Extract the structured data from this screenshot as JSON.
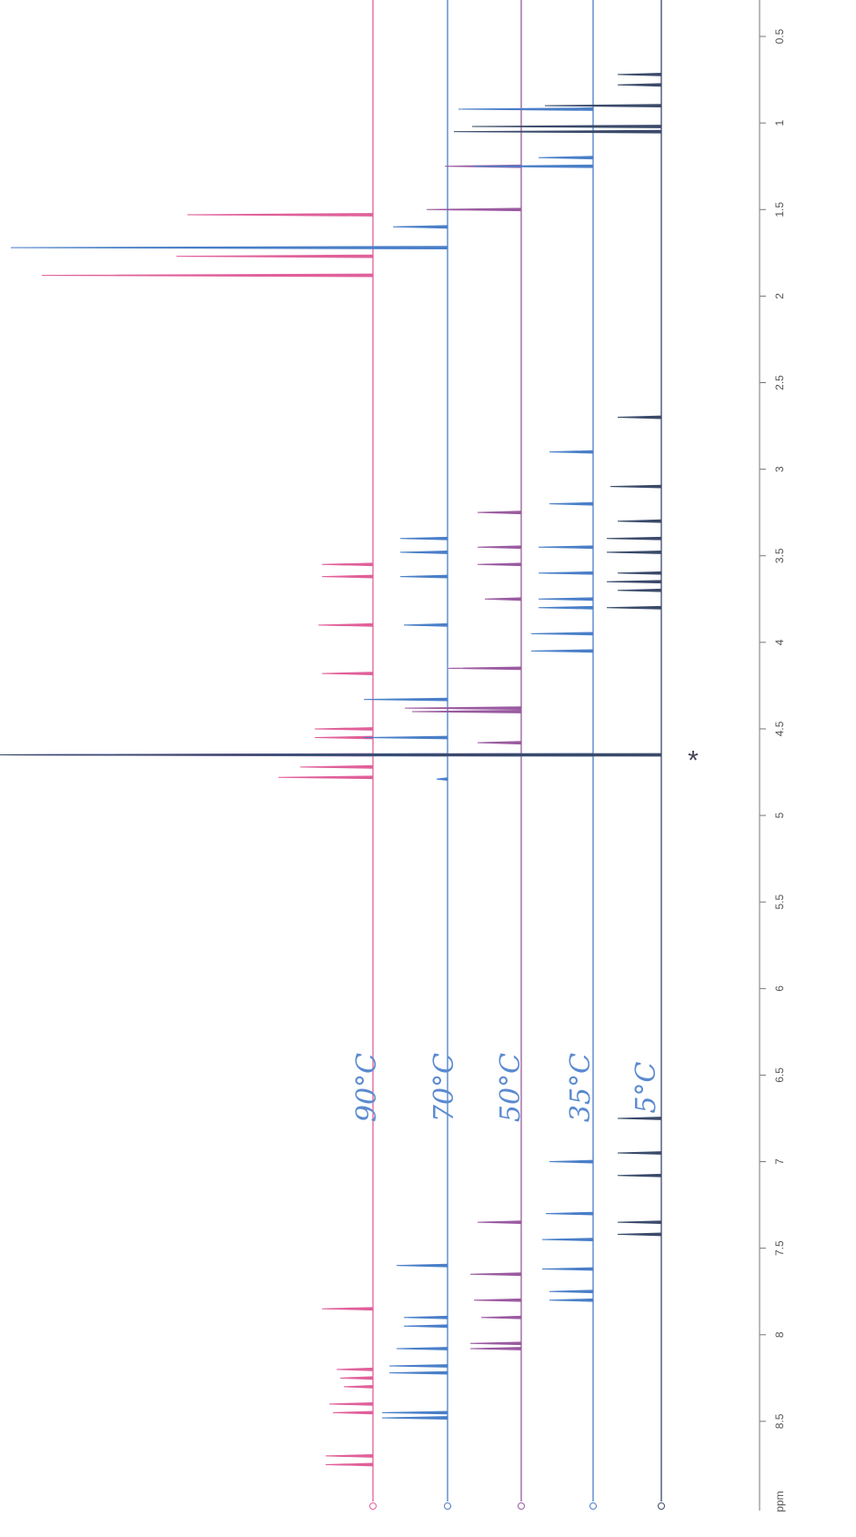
{
  "chart_data": {
    "type": "line",
    "xlabel": "ppm",
    "annotation": "*",
    "xlim": [
      0.3,
      9.0
    ],
    "xticks": [
      0.5,
      1,
      1.5,
      2,
      2.5,
      3,
      3.5,
      4,
      4.5,
      5,
      5.5,
      6,
      6.5,
      7,
      7.5,
      8,
      8.5
    ],
    "series": [
      {
        "name": "90°C",
        "color": "#e0609a",
        "x": [
          1.53,
          1.77,
          1.88,
          3.55,
          3.62,
          3.9,
          4.18,
          4.5,
          4.55,
          4.65,
          4.72,
          4.78,
          7.85,
          8.2,
          8.25,
          8.3,
          8.4,
          8.45,
          8.7,
          8.75
        ],
        "values": [
          51,
          54,
          91,
          14,
          14,
          15,
          14,
          16,
          16,
          103,
          20,
          26,
          14,
          10,
          9,
          8,
          12,
          11,
          13,
          13
        ]
      },
      {
        "name": "70°C",
        "color": "#4a7fc8",
        "x": [
          1.6,
          1.72,
          3.4,
          3.48,
          3.62,
          3.9,
          4.33,
          4.55,
          4.65,
          4.79,
          7.6,
          7.9,
          7.95,
          8.08,
          8.18,
          8.22,
          8.45,
          8.48
        ],
        "values": [
          15,
          120,
          13,
          13,
          13,
          12,
          23,
          23,
          123,
          3,
          14,
          12,
          12,
          14,
          16,
          16,
          18,
          18
        ]
      },
      {
        "name": "50°C",
        "color": "#9a5aa0",
        "x": [
          1.25,
          1.5,
          3.25,
          3.45,
          3.55,
          3.75,
          4.15,
          4.38,
          4.4,
          4.58,
          4.65,
          7.35,
          7.65,
          7.8,
          7.9,
          8.05,
          8.08
        ],
        "values": [
          21,
          26,
          12,
          12,
          12,
          10,
          20,
          32,
          30,
          12,
          143,
          12,
          14,
          13,
          11,
          14,
          14
        ]
      },
      {
        "name": "35°C",
        "color": "#4a7fc8",
        "x": [
          0.92,
          1.2,
          1.25,
          2.9,
          3.2,
          3.45,
          3.6,
          3.75,
          3.8,
          3.95,
          4.05,
          4.65,
          7.0,
          7.3,
          7.45,
          7.62,
          7.75,
          7.8
        ],
        "values": [
          37,
          15,
          33,
          12,
          12,
          15,
          15,
          15,
          15,
          17,
          17,
          163,
          12,
          13,
          14,
          14,
          12,
          12
        ]
      },
      {
        "name": "5°C",
        "color": "#3a4a6a",
        "x": [
          0.72,
          0.78,
          0.9,
          1.02,
          1.05,
          2.7,
          3.1,
          3.3,
          3.4,
          3.48,
          3.6,
          3.65,
          3.7,
          3.8,
          4.65,
          6.75,
          6.95,
          7.08,
          7.35,
          7.42
        ],
        "values": [
          12,
          12,
          32,
          52,
          57,
          12,
          14,
          12,
          15,
          15,
          12,
          15,
          12,
          15,
          182,
          12,
          12,
          12,
          12,
          12
        ]
      }
    ]
  }
}
